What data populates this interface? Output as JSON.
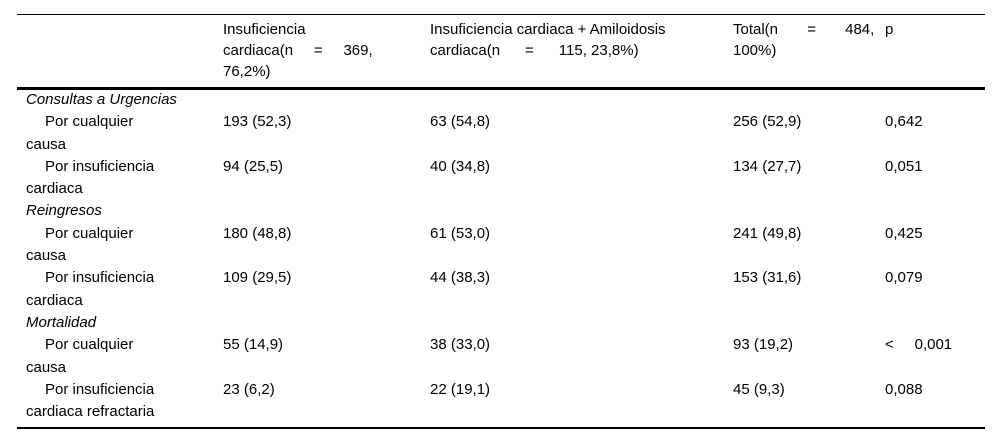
{
  "table": {
    "colors": {
      "background": "#ffffff",
      "text": "#000000",
      "rule": "#000000"
    },
    "header": {
      "col_heart_failure": "Insuficiencia cardiaca(n     =     369, 76,2%)",
      "col_hf_plus_amyloidosis": "Insuficiencia cardiaca + Amiloidosis cardiaca(n      =      115, 23,8%)",
      "col_total": "Total(n       =       484, 100%)",
      "col_p": "p"
    },
    "rows": [
      {
        "type": "section",
        "label": "Consultas a Urgencias"
      },
      {
        "type": "data",
        "label": "Por cualquier causa",
        "hf": "193 (52,3)",
        "hf_amyloidosis": "63 (54,8)",
        "total": "256 (52,9)",
        "p": "0,642"
      },
      {
        "type": "data",
        "label": "Por insuficiencia cardiaca",
        "hf": "94 (25,5)",
        "hf_amyloidosis": "40 (34,8)",
        "total": "134 (27,7)",
        "p": "0,051"
      },
      {
        "type": "section",
        "label": "Reingresos"
      },
      {
        "type": "data",
        "label": "Por cualquier causa",
        "hf": "180 (48,8)",
        "hf_amyloidosis": "61 (53,0)",
        "total": "241 (49,8)",
        "p": "0,425"
      },
      {
        "type": "data",
        "label": "Por insuficiencia cardiaca",
        "hf": "109 (29,5)",
        "hf_amyloidosis": "44 (38,3)",
        "total": "153 (31,6)",
        "p": "0,079"
      },
      {
        "type": "section",
        "label": "Mortalidad"
      },
      {
        "type": "data",
        "label": "Por cualquier causa",
        "hf": "55 (14,9)",
        "hf_amyloidosis": "38 (33,0)",
        "total": "93 (19,2)",
        "p": "<     0,001"
      },
      {
        "type": "data",
        "label": "Por insuficiencia cardiaca refractaria",
        "hf": "23 (6,2)",
        "hf_amyloidosis": "22 (19,1)",
        "total": "45 (9,3)",
        "p": "0,088"
      }
    ]
  }
}
